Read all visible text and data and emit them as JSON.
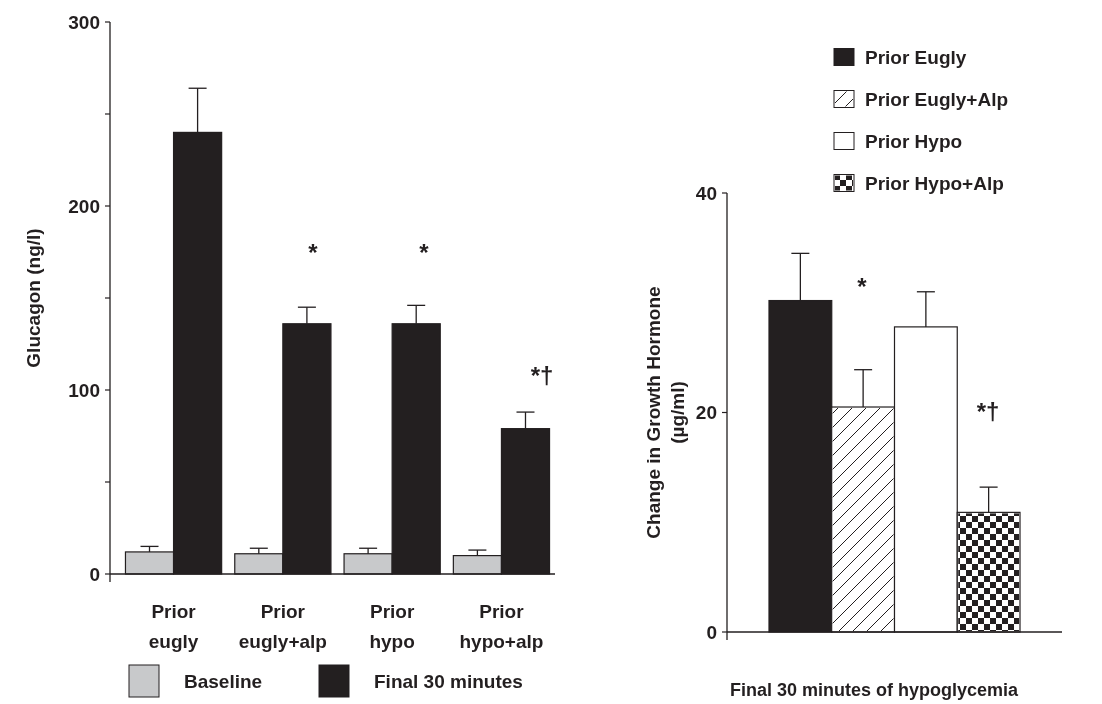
{
  "chart_data": [
    {
      "type": "bar",
      "ylabel": "Glucagon (ng/l)",
      "categories": [
        "Prior eugly",
        "Prior eugly+alp",
        "Prior hypo",
        "Prior hypo+alp"
      ],
      "ylim": [
        0,
        300
      ],
      "yticks": [
        0,
        {
          "value": 50,
          "label": null
        },
        100,
        {
          "value": 150,
          "label": null
        },
        200,
        {
          "value": 250,
          "label": null
        },
        300
      ],
      "legend": "bottom",
      "grid": false,
      "series": [
        {
          "name": "Baseline",
          "color": "#c8c9cb",
          "values": [
            12,
            11,
            11,
            10
          ],
          "errors": [
            3,
            3,
            3,
            3
          ]
        },
        {
          "name": "Final 30 minutes",
          "color": "#231f20",
          "values": [
            240,
            136,
            136,
            79
          ],
          "errors": [
            24,
            9,
            10,
            9
          ]
        }
      ],
      "annotations": [
        "*",
        "*",
        "*†"
      ]
    },
    {
      "type": "bar",
      "ylabel": "Change in Growth Hormone (µg/ml)",
      "xlabel": "Final 30 minutes of hypoglycemia",
      "categories": [
        null
      ],
      "ylim": [
        0,
        40
      ],
      "yticks": [
        0,
        20,
        40
      ],
      "legend": "top right",
      "grid": false,
      "series": [
        {
          "name": "Prior Eugly",
          "color": "#231f20",
          "values": [
            30.2
          ],
          "errors": [
            4.3
          ]
        },
        {
          "name": "Prior Eugly+Alp",
          "color": "#ffffff",
          "values": [
            20.5
          ],
          "errors": [
            3.4
          ]
        },
        {
          "name": "Prior Hypo",
          "color": "#ffffff",
          "values": [
            27.8
          ],
          "errors": [
            3.2
          ]
        },
        {
          "name": "Prior Hypo+Alp",
          "color": "#ffffff",
          "values": [
            10.9
          ],
          "errors": [
            2.3
          ]
        }
      ],
      "annotations": [
        "*",
        "*†"
      ]
    }
  ]
}
